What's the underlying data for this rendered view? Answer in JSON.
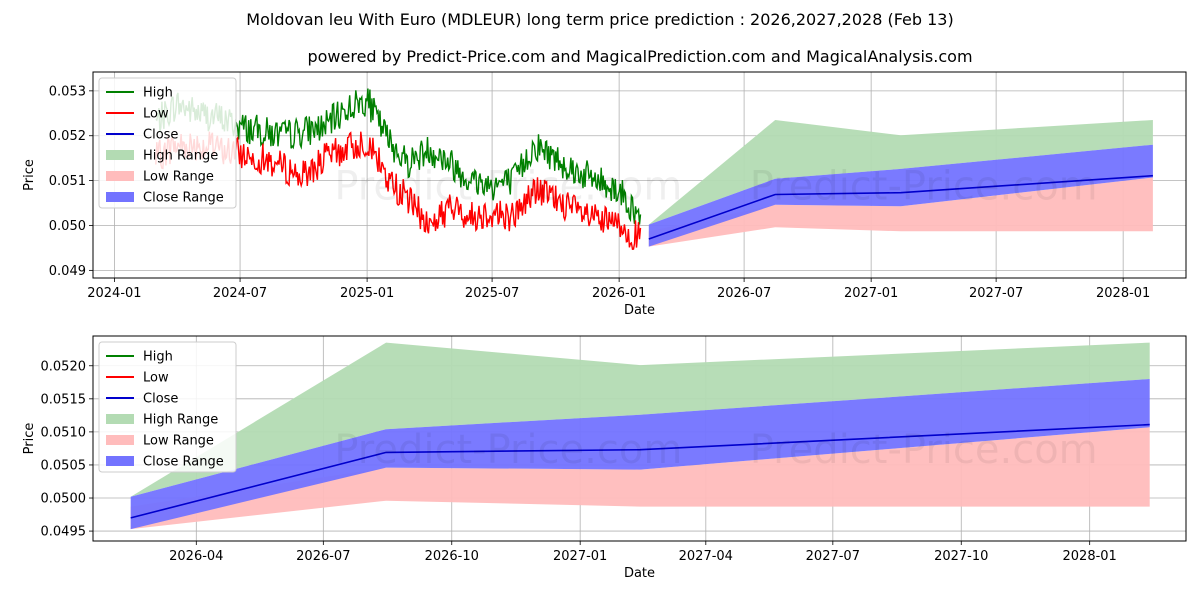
{
  "title": "Moldovan leu With Euro (MDLEUR) long term price prediction : 2026,2027,2028 (Feb 13)",
  "subtitle": "powered by Predict-Price.com and MagicalPrediction.com and MagicalAnalysis.com",
  "watermark": "Predict-Price.com",
  "colors": {
    "high": "#008000",
    "low": "#ff0000",
    "close": "#0000cc",
    "high_range": "#b3dbb3",
    "low_range": "#ffbcbc",
    "close_range": "#7373ff"
  },
  "chart_data": [
    {
      "type": "line",
      "xlabel": "Date",
      "ylabel": "Price",
      "xlim": [
        "2023-12-01",
        "2028-04-01"
      ],
      "ylim": [
        0.04883,
        0.05342
      ],
      "x_ticks": [
        "2024-01",
        "2024-07",
        "2025-01",
        "2025-07",
        "2026-01",
        "2026-07",
        "2027-01",
        "2027-07",
        "2028-01"
      ],
      "y_ticks": [
        "0.049",
        "0.050",
        "0.051",
        "0.052",
        "0.053"
      ],
      "legend": [
        "High",
        "Low",
        "Close",
        "High Range",
        "Low Range",
        "Close Range"
      ],
      "history": {
        "x": [
          "2024-03-01",
          "2024-04-01",
          "2024-05-01",
          "2024-06-01",
          "2024-07-01",
          "2024-08-01",
          "2024-09-01",
          "2024-10-01",
          "2024-11-01",
          "2024-12-01",
          "2025-01-01",
          "2025-02-01",
          "2025-03-01",
          "2025-04-01",
          "2025-05-01",
          "2025-06-01",
          "2025-07-01",
          "2025-08-01",
          "2025-09-01",
          "2025-10-01",
          "2025-11-01",
          "2025-12-01",
          "2026-01-01",
          "2026-02-01"
        ],
        "high": [
          0.0523,
          0.0527,
          0.0525,
          0.0524,
          0.0522,
          0.0521,
          0.052,
          0.0521,
          0.0522,
          0.0526,
          0.0528,
          0.0519,
          0.0514,
          0.0517,
          0.0514,
          0.051,
          0.0509,
          0.051,
          0.0518,
          0.0515,
          0.0512,
          0.051,
          0.0508,
          0.0501
        ],
        "low": [
          0.0515,
          0.0518,
          0.0518,
          0.0517,
          0.0516,
          0.0515,
          0.0513,
          0.0511,
          0.0515,
          0.0517,
          0.0519,
          0.051,
          0.0506,
          0.05,
          0.0504,
          0.0502,
          0.0503,
          0.0502,
          0.0508,
          0.0506,
          0.0503,
          0.0501,
          0.05,
          0.0497
        ]
      },
      "forecast": {
        "x": [
          "2026-02-13",
          "2026-08-15",
          "2027-02-13",
          "2028-02-13"
        ],
        "close": [
          0.0497,
          0.05069,
          0.05073,
          0.05111
        ],
        "high_range": [
          [
            0.05002,
            0.05002
          ],
          [
            0.05104,
            0.05235
          ],
          [
            0.05126,
            0.05201
          ],
          [
            0.0518,
            0.05235
          ]
        ],
        "low_range": [
          [
            0.04953,
            0.04987
          ],
          [
            0.04996,
            0.05046
          ],
          [
            0.04987,
            0.05043
          ],
          [
            0.04987,
            0.05107
          ]
        ],
        "close_range": [
          [
            0.04953,
            0.05002
          ],
          [
            0.05046,
            0.05104
          ],
          [
            0.05043,
            0.05126
          ],
          [
            0.05107,
            0.0518
          ]
        ]
      }
    },
    {
      "type": "line",
      "xlabel": "Date",
      "ylabel": "Price",
      "xlim": [
        "2026-01-17",
        "2028-03-10"
      ],
      "ylim": [
        0.04935,
        0.05245
      ],
      "x_ticks": [
        "2026-04",
        "2026-07",
        "2026-10",
        "2027-01",
        "2027-04",
        "2027-07",
        "2027-10",
        "2028-01"
      ],
      "y_ticks": [
        "0.0495",
        "0.0500",
        "0.0505",
        "0.0510",
        "0.0515",
        "0.0520"
      ],
      "legend": [
        "High",
        "Low",
        "Close",
        "High Range",
        "Low Range",
        "Close Range"
      ],
      "forecast": {
        "x": [
          "2026-02-13",
          "2026-08-15",
          "2027-02-13",
          "2028-02-13"
        ],
        "close": [
          0.0497,
          0.05069,
          0.05073,
          0.05111
        ],
        "high_range": [
          [
            0.05002,
            0.05002
          ],
          [
            0.05104,
            0.05235
          ],
          [
            0.05126,
            0.05201
          ],
          [
            0.0518,
            0.05235
          ]
        ],
        "low_range": [
          [
            0.04953,
            0.04987
          ],
          [
            0.04996,
            0.05046
          ],
          [
            0.04987,
            0.05043
          ],
          [
            0.04987,
            0.05107
          ]
        ],
        "close_range": [
          [
            0.04953,
            0.05002
          ],
          [
            0.05046,
            0.05104
          ],
          [
            0.05043,
            0.05126
          ],
          [
            0.05107,
            0.0518
          ]
        ]
      }
    }
  ]
}
